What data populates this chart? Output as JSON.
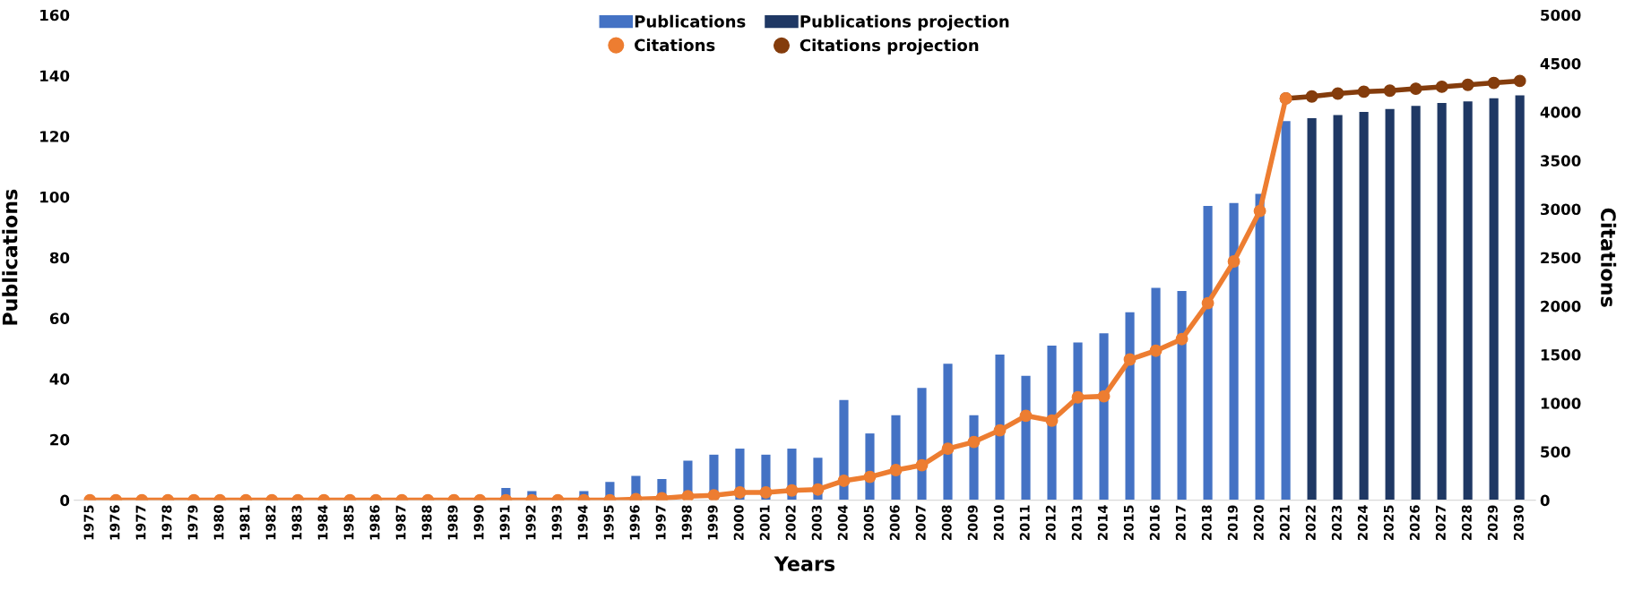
{
  "chart_data": {
    "type": "bar",
    "xlabel": "Years",
    "ylabel": "Publications",
    "y2label": "Citations",
    "categories": [
      "1975",
      "1976",
      "1977",
      "1978",
      "1979",
      "1980",
      "1981",
      "1982",
      "1983",
      "1984",
      "1985",
      "1986",
      "1987",
      "1988",
      "1989",
      "1990",
      "1991",
      "1992",
      "1993",
      "1994",
      "1995",
      "1996",
      "1997",
      "1998",
      "1999",
      "2000",
      "2001",
      "2002",
      "2003",
      "2004",
      "2005",
      "2006",
      "2007",
      "2008",
      "2009",
      "2010",
      "2011",
      "2012",
      "2013",
      "2014",
      "2015",
      "2016",
      "2017",
      "2018",
      "2019",
      "2020",
      "2021",
      "2022",
      "2023",
      "2024",
      "2025",
      "2026",
      "2027",
      "2028",
      "2029",
      "2030"
    ],
    "series": [
      {
        "name": "Publications",
        "color": "#4472c4",
        "values": [
          0,
          0,
          0,
          0,
          0,
          0,
          0,
          0,
          0,
          0,
          0,
          0,
          0,
          0,
          0,
          0,
          4,
          3,
          0,
          3,
          6,
          8,
          7,
          13,
          15,
          17,
          15,
          17,
          14,
          33,
          22,
          28,
          37,
          45,
          28,
          48,
          41,
          51,
          52,
          55,
          62,
          70,
          69,
          97,
          98,
          101,
          125,
          null,
          null,
          null,
          null,
          null,
          null,
          null,
          null,
          null
        ]
      },
      {
        "name": "Publications projection",
        "color": "#1f3864",
        "values": [
          null,
          null,
          null,
          null,
          null,
          null,
          null,
          null,
          null,
          null,
          null,
          null,
          null,
          null,
          null,
          null,
          null,
          null,
          null,
          null,
          null,
          null,
          null,
          null,
          null,
          null,
          null,
          null,
          null,
          null,
          null,
          null,
          null,
          null,
          null,
          null,
          null,
          null,
          null,
          null,
          null,
          null,
          null,
          null,
          null,
          null,
          null,
          126,
          127,
          128,
          129,
          130,
          131,
          131.5,
          132.5,
          133.5
        ]
      },
      {
        "name": "Citations projection",
        "type": "line",
        "axis": "y2",
        "color": "#843c0c",
        "values": [
          null,
          null,
          null,
          null,
          null,
          null,
          null,
          null,
          null,
          null,
          null,
          null,
          null,
          null,
          null,
          null,
          null,
          null,
          null,
          null,
          null,
          null,
          null,
          null,
          null,
          null,
          null,
          null,
          null,
          null,
          null,
          null,
          null,
          null,
          null,
          null,
          null,
          null,
          null,
          null,
          null,
          null,
          null,
          null,
          null,
          null,
          4140,
          4160,
          4190,
          4210,
          4220,
          4240,
          4260,
          4280,
          4300,
          4320
        ]
      },
      {
        "name": "Citations",
        "type": "line",
        "axis": "y2",
        "color": "#ed7d31",
        "values": [
          0,
          0,
          0,
          0,
          0,
          0,
          0,
          0,
          0,
          0,
          0,
          0,
          0,
          0,
          0,
          0,
          0,
          0,
          0,
          0,
          0,
          10,
          20,
          40,
          50,
          80,
          80,
          100,
          110,
          200,
          240,
          310,
          360,
          530,
          600,
          720,
          870,
          820,
          1060,
          1070,
          1450,
          1540,
          1660,
          2030,
          2460,
          2980,
          4140,
          null,
          null,
          null,
          null,
          null,
          null,
          null,
          null,
          null
        ]
      }
    ],
    "ylim": [
      0,
      160
    ],
    "yticks": [
      0,
      20,
      40,
      60,
      80,
      100,
      120,
      140,
      160
    ],
    "y2lim": [
      0,
      5000
    ],
    "y2ticks": [
      0,
      500,
      1000,
      1500,
      2000,
      2500,
      3000,
      3500,
      4000,
      4500,
      5000
    ],
    "marker": "circle",
    "line_style": "solid",
    "grid": false,
    "legend": "top"
  }
}
